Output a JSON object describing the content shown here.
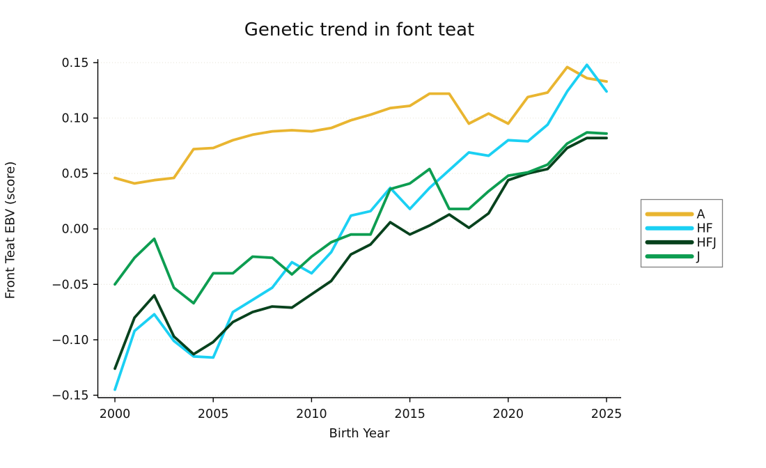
{
  "title": "Genetic trend in font teat",
  "x_axis": {
    "label": "Birth Year",
    "tick_labels": [
      "2000",
      "2005",
      "2010",
      "2015",
      "2020",
      "2025"
    ],
    "tick_values": [
      2000,
      2005,
      2010,
      2015,
      2020,
      2025
    ]
  },
  "y_axis": {
    "label": "Front Teat EBV (score)",
    "tick_labels": [
      "0.15",
      "0.10",
      "0.05",
      "0.00",
      "−0.05",
      "−0.10",
      "−0.15"
    ],
    "tick_values": [
      0.15,
      0.1,
      0.05,
      0.0,
      -0.05,
      -0.1,
      -0.15
    ]
  },
  "legend": {
    "position": "right-outside-middle"
  },
  "chart_data": {
    "type": "line",
    "title": "Genetic trend in font teat",
    "xlabel": "Birth Year",
    "ylabel": "Front Teat EBV (score)",
    "xlim": [
      2000,
      2025
    ],
    "ylim": [
      -0.15,
      0.15
    ],
    "grid": "horizontal-dotted-faint",
    "legend_position": "right-outside",
    "x": [
      2000,
      2001,
      2002,
      2003,
      2004,
      2005,
      2006,
      2007,
      2008,
      2009,
      2010,
      2011,
      2012,
      2013,
      2014,
      2015,
      2016,
      2017,
      2018,
      2019,
      2020,
      2021,
      2022,
      2023,
      2024,
      2025
    ],
    "series": [
      {
        "name": "A",
        "color": "#E9B530",
        "values": [
          0.046,
          0.041,
          0.044,
          0.046,
          0.072,
          0.073,
          0.08,
          0.085,
          0.088,
          0.089,
          0.088,
          0.091,
          0.098,
          0.103,
          0.109,
          0.111,
          0.122,
          0.122,
          0.095,
          0.104,
          0.095,
          0.119,
          0.123,
          0.146,
          0.136,
          0.133
        ]
      },
      {
        "name": "HF",
        "color": "#1BD0F3",
        "values": [
          -0.145,
          -0.092,
          -0.077,
          -0.101,
          -0.115,
          -0.116,
          -0.075,
          -0.064,
          -0.053,
          -0.03,
          -0.04,
          -0.021,
          0.012,
          0.016,
          0.037,
          0.018,
          0.037,
          0.053,
          0.069,
          0.066,
          0.08,
          0.079,
          0.094,
          0.124,
          0.148,
          0.124
        ]
      },
      {
        "name": "HFJ",
        "color": "#07421D",
        "values": [
          -0.126,
          -0.08,
          -0.06,
          -0.097,
          -0.113,
          -0.102,
          -0.084,
          -0.075,
          -0.07,
          -0.071,
          -0.059,
          -0.047,
          -0.023,
          -0.014,
          0.006,
          -0.005,
          0.003,
          0.013,
          0.001,
          0.014,
          0.044,
          0.05,
          0.054,
          0.073,
          0.082,
          0.082
        ]
      },
      {
        "name": "J",
        "color": "#0D9D51",
        "values": [
          -0.05,
          -0.026,
          -0.009,
          -0.053,
          -0.067,
          -0.04,
          -0.04,
          -0.025,
          -0.026,
          -0.041,
          -0.025,
          -0.012,
          -0.005,
          -0.005,
          0.036,
          0.041,
          0.054,
          0.018,
          0.018,
          0.034,
          0.048,
          0.051,
          0.058,
          0.077,
          0.087,
          0.086
        ]
      }
    ]
  },
  "style": {
    "axis_color": "#000000",
    "text_color": "#111111",
    "grid_color": "#e8e4d8",
    "legend_border_color": "#808080",
    "background": "#ffffff"
  }
}
